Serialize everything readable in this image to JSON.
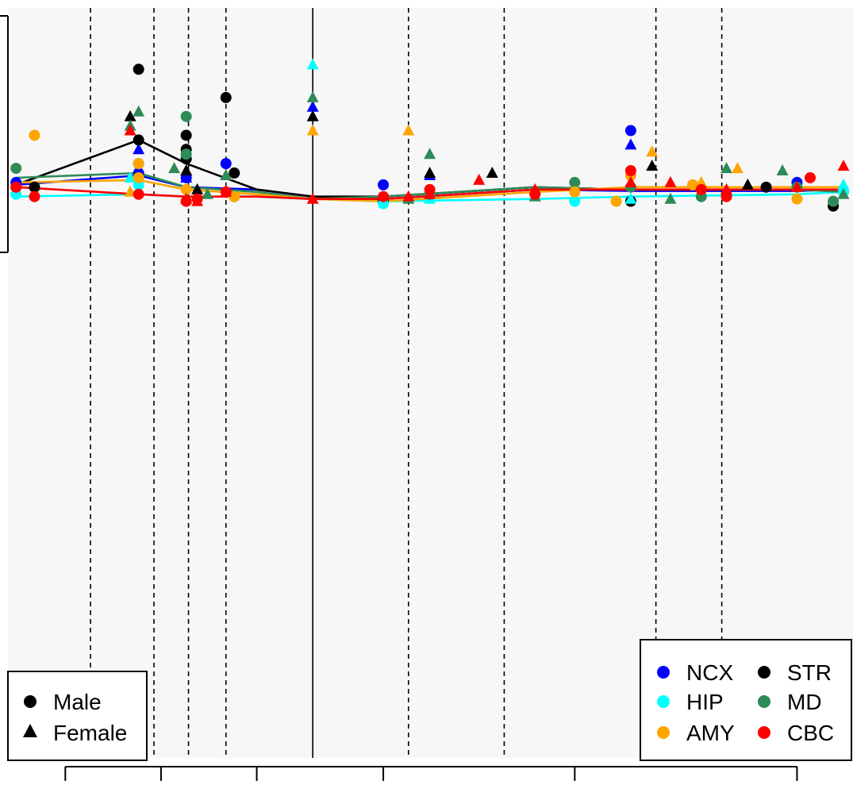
{
  "chart_data": {
    "type": "scatter",
    "x_scale": "log",
    "grid": false,
    "background": "#f7f7f7",
    "xlim": [
      33,
      15000
    ],
    "ylim": [
      -12,
      3.9
    ],
    "x_ticks": [
      50,
      100,
      200,
      500,
      2000,
      10000
    ],
    "x_tick_labels": [
      "",
      "",
      "",
      "",
      "",
      ""
    ],
    "solid_vline": 300,
    "dashed_vlines": [
      60,
      95,
      122,
      160,
      600,
      1200,
      3600,
      5800
    ],
    "shape_legend": {
      "position": "bottom-left",
      "entries": [
        {
          "label": "Male",
          "shape": "circle"
        },
        {
          "label": "Female",
          "shape": "triangle"
        }
      ]
    },
    "region_legend": {
      "position": "bottom-right",
      "entries": [
        {
          "label": "NCX",
          "color": "#0000ff"
        },
        {
          "label": "STR",
          "color": "#000000"
        },
        {
          "label": "HIP",
          "color": "#00ffff"
        },
        {
          "label": "MD",
          "color": "#2e8b57"
        },
        {
          "label": "AMY",
          "color": "#ffa500"
        },
        {
          "label": "CBC",
          "color": "#ff0000"
        }
      ]
    },
    "series": [
      {
        "name": "NCX",
        "color": "#0000ff",
        "line": [
          [
            35,
            0.15
          ],
          [
            85,
            0.35
          ],
          [
            120,
            0.1
          ],
          [
            200,
            0.05
          ],
          [
            300,
            -0.1
          ],
          [
            500,
            -0.15
          ],
          [
            1500,
            0.05
          ],
          [
            3000,
            0.02
          ],
          [
            10000,
            0.02
          ],
          [
            14000,
            0.05
          ]
        ],
        "male": [
          [
            35,
            0.2
          ],
          [
            85,
            0.4
          ],
          [
            120,
            0.3
          ],
          [
            160,
            0.6
          ],
          [
            500,
            0.15
          ],
          [
            3000,
            1.3
          ],
          [
            10000,
            0.2
          ]
        ],
        "female": [
          [
            85,
            0.9
          ],
          [
            120,
            0.3
          ],
          [
            300,
            1.8
          ],
          [
            700,
            0.35
          ],
          [
            3000,
            1.0
          ],
          [
            14000,
            0.1
          ]
        ]
      },
      {
        "name": "STR",
        "color": "#000000",
        "line": [
          [
            35,
            0.15
          ],
          [
            85,
            1.1
          ],
          [
            120,
            0.6
          ],
          [
            200,
            0.05
          ],
          [
            300,
            -0.1
          ],
          [
            500,
            -0.1
          ],
          [
            1500,
            0.1
          ],
          [
            3000,
            0.05
          ],
          [
            10000,
            0.05
          ],
          [
            14000,
            0.05
          ]
        ],
        "male": [
          [
            35,
            0.1
          ],
          [
            40,
            0.1
          ],
          [
            85,
            2.6
          ],
          [
            85,
            1.1
          ],
          [
            120,
            1.2
          ],
          [
            120,
            0.9
          ],
          [
            120,
            0.7
          ],
          [
            160,
            2.0
          ],
          [
            170,
            0.4
          ],
          [
            500,
            -0.2
          ],
          [
            3000,
            -0.2
          ],
          [
            8000,
            0.1
          ],
          [
            13000,
            -0.3
          ]
        ],
        "female": [
          [
            80,
            1.6
          ],
          [
            120,
            0.45
          ],
          [
            130,
            0.05
          ],
          [
            300,
            1.6
          ],
          [
            700,
            0.4
          ],
          [
            1100,
            0.4
          ],
          [
            3500,
            0.55
          ],
          [
            7000,
            0.15
          ]
        ]
      },
      {
        "name": "HIP",
        "color": "#00ffff",
        "line": [
          [
            35,
            -0.1
          ],
          [
            85,
            -0.05
          ],
          [
            120,
            -0.1
          ],
          [
            200,
            -0.1
          ],
          [
            300,
            -0.15
          ],
          [
            500,
            -0.2
          ],
          [
            1500,
            -0.15
          ],
          [
            3000,
            -0.1
          ],
          [
            10000,
            -0.05
          ],
          [
            14000,
            0.0
          ]
        ],
        "male": [
          [
            35,
            -0.05
          ],
          [
            85,
            0.15
          ],
          [
            170,
            -0.1
          ],
          [
            500,
            -0.25
          ],
          [
            2000,
            -0.2
          ],
          [
            14000,
            0.0
          ]
        ],
        "female": [
          [
            80,
            0.3
          ],
          [
            300,
            2.7
          ],
          [
            700,
            -0.15
          ],
          [
            3000,
            -0.15
          ],
          [
            14000,
            0.15
          ]
        ]
      },
      {
        "name": "MD",
        "color": "#2e8b57",
        "line": [
          [
            35,
            0.3
          ],
          [
            85,
            0.4
          ],
          [
            120,
            0.1
          ],
          [
            200,
            0.0
          ],
          [
            300,
            -0.15
          ],
          [
            500,
            -0.1
          ],
          [
            1500,
            0.1
          ],
          [
            3000,
            0.05
          ],
          [
            10000,
            0.05
          ],
          [
            14000,
            0.0
          ]
        ],
        "male": [
          [
            35,
            0.5
          ],
          [
            85,
            0.6
          ],
          [
            120,
            1.6
          ],
          [
            120,
            0.8
          ],
          [
            170,
            -0.1
          ],
          [
            700,
            -0.05
          ],
          [
            2000,
            0.2
          ],
          [
            3000,
            0.1
          ],
          [
            5000,
            -0.1
          ],
          [
            10000,
            0.1
          ],
          [
            13000,
            -0.2
          ]
        ],
        "female": [
          [
            85,
            1.7
          ],
          [
            80,
            1.4
          ],
          [
            110,
            0.5
          ],
          [
            140,
            -0.05
          ],
          [
            160,
            0.35
          ],
          [
            300,
            2.0
          ],
          [
            600,
            -0.15
          ],
          [
            700,
            0.8
          ],
          [
            1500,
            -0.1
          ],
          [
            4000,
            -0.15
          ],
          [
            6000,
            0.5
          ],
          [
            9000,
            0.45
          ],
          [
            14000,
            -0.05
          ]
        ]
      },
      {
        "name": "AMY",
        "color": "#ffa500",
        "line": [
          [
            35,
            0.2
          ],
          [
            85,
            0.25
          ],
          [
            120,
            0.05
          ],
          [
            200,
            -0.05
          ],
          [
            300,
            -0.15
          ],
          [
            500,
            -0.2
          ],
          [
            1500,
            0.0
          ],
          [
            3000,
            0.1
          ],
          [
            10000,
            0.1
          ],
          [
            14000,
            0.1
          ]
        ],
        "male": [
          [
            40,
            1.2
          ],
          [
            85,
            0.3
          ],
          [
            85,
            0.6
          ],
          [
            120,
            0.05
          ],
          [
            170,
            -0.1
          ],
          [
            2000,
            0.0
          ],
          [
            2700,
            -0.2
          ],
          [
            3000,
            0.35
          ],
          [
            4700,
            0.15
          ],
          [
            10000,
            -0.15
          ]
        ],
        "female": [
          [
            80,
            0.0
          ],
          [
            300,
            1.3
          ],
          [
            600,
            1.3
          ],
          [
            3500,
            0.85
          ],
          [
            5000,
            0.2
          ],
          [
            6500,
            0.5
          ]
        ]
      },
      {
        "name": "CBC",
        "color": "#ff0000",
        "line": [
          [
            35,
            0.1
          ],
          [
            85,
            -0.05
          ],
          [
            120,
            -0.1
          ],
          [
            200,
            -0.1
          ],
          [
            300,
            -0.15
          ],
          [
            500,
            -0.15
          ],
          [
            1500,
            0.05
          ],
          [
            3000,
            0.05
          ],
          [
            10000,
            0.05
          ],
          [
            14000,
            0.05
          ]
        ],
        "male": [
          [
            35,
            0.1
          ],
          [
            40,
            -0.1
          ],
          [
            85,
            -0.05
          ],
          [
            120,
            -0.2
          ],
          [
            130,
            -0.15
          ],
          [
            160,
            0.0
          ],
          [
            500,
            -0.1
          ],
          [
            700,
            0.05
          ],
          [
            1500,
            -0.05
          ],
          [
            3000,
            0.45
          ],
          [
            5000,
            0.05
          ],
          [
            6000,
            -0.1
          ],
          [
            11000,
            0.3
          ]
        ],
        "female": [
          [
            80,
            1.3
          ],
          [
            120,
            -0.15
          ],
          [
            130,
            -0.2
          ],
          [
            160,
            0.0
          ],
          [
            300,
            -0.15
          ],
          [
            600,
            -0.1
          ],
          [
            700,
            -0.05
          ],
          [
            1000,
            0.25
          ],
          [
            1500,
            0.05
          ],
          [
            3000,
            0.2
          ],
          [
            4000,
            0.2
          ],
          [
            6000,
            0.05
          ],
          [
            10000,
            0.1
          ],
          [
            14000,
            0.55
          ]
        ]
      }
    ]
  }
}
